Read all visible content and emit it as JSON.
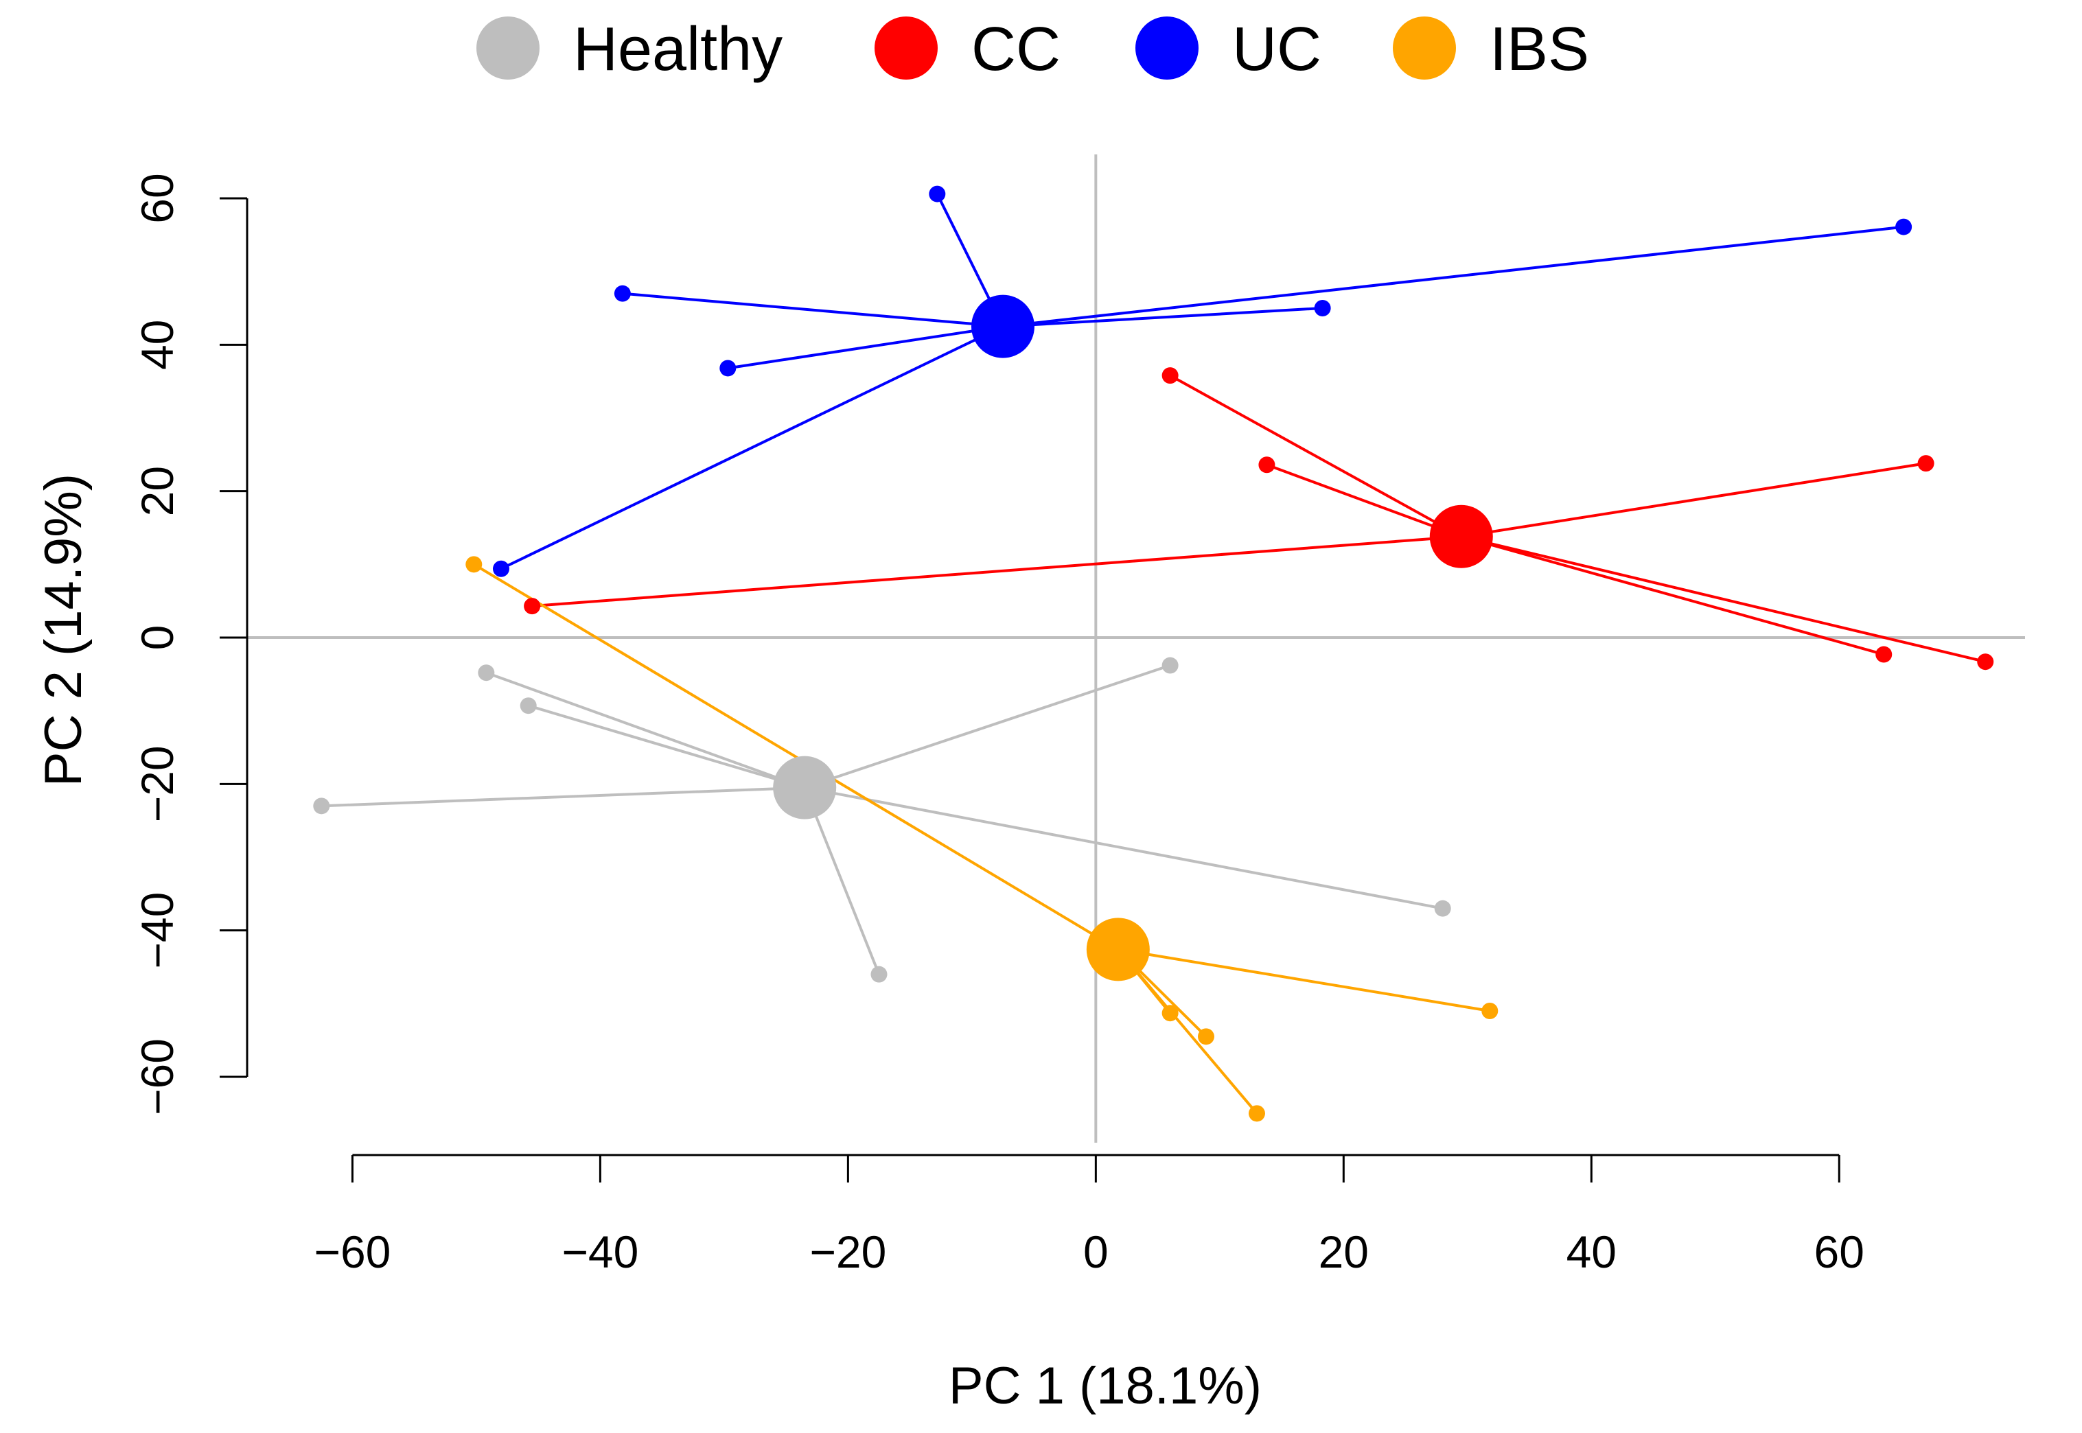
{
  "chart_data": {
    "type": "scatter",
    "title": "",
    "xlabel": "PC 1 (18.1%)",
    "ylabel": "PC 2 (14.9%)",
    "xticks": [
      "−60",
      "−40",
      "−20",
      "0",
      "20",
      "40",
      "60"
    ],
    "yticks": [
      "−60",
      "−40",
      "−20",
      "0",
      "20",
      "40",
      "60"
    ],
    "xtick_values": [
      -60,
      -40,
      -20,
      0,
      20,
      40,
      60
    ],
    "ytick_values": [
      -60,
      -40,
      -20,
      0,
      20,
      40,
      60
    ],
    "xlim": [
      -68.5,
      75
    ],
    "ylim": [
      -69,
      66
    ],
    "reference_lines": {
      "x": 0,
      "y": 0
    },
    "grid": false,
    "legend_position": "top",
    "series": [
      {
        "name": "Healthy",
        "color": "#BEBEBE",
        "centroid": [
          -23.5,
          -20.5
        ],
        "points": [
          [
            -49.2,
            -4.8
          ],
          [
            -45.8,
            -9.3
          ],
          [
            -62.5,
            -23
          ],
          [
            6,
            -3.8
          ],
          [
            28,
            -37
          ],
          [
            -17.5,
            -46
          ]
        ]
      },
      {
        "name": "CC",
        "color": "#FF0000",
        "centroid": [
          29.5,
          13.8
        ],
        "points": [
          [
            6,
            35.8
          ],
          [
            13.8,
            23.6
          ],
          [
            67,
            23.8
          ],
          [
            -45.5,
            4.3
          ],
          [
            63.6,
            -2.3
          ],
          [
            71.8,
            -3.3
          ]
        ]
      },
      {
        "name": "UC",
        "color": "#0000FF",
        "centroid": [
          -7.5,
          42.5
        ],
        "points": [
          [
            -12.8,
            60.6
          ],
          [
            -38.2,
            47
          ],
          [
            -29.7,
            36.8
          ],
          [
            18.3,
            45
          ],
          [
            65.2,
            56.1
          ],
          [
            -48,
            9.4
          ]
        ]
      },
      {
        "name": "IBS",
        "color": "#FFA500",
        "centroid": [
          1.8,
          -42.6
        ],
        "points": [
          [
            -50.2,
            10
          ],
          [
            31.8,
            -51
          ],
          [
            6,
            -51.3
          ],
          [
            8.9,
            -54.5
          ],
          [
            13,
            -65
          ]
        ]
      }
    ]
  }
}
